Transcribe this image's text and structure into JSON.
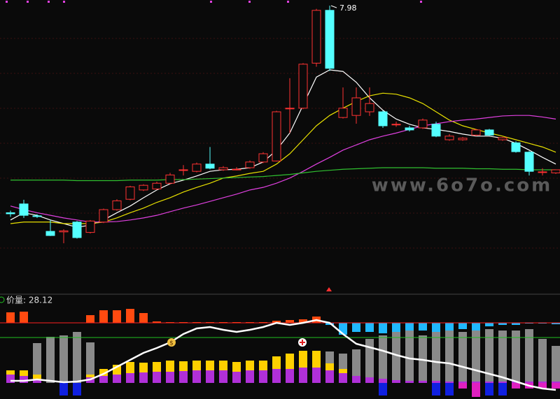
{
  "chart_data": [
    {
      "type": "candlestick",
      "peak_label": 7.98,
      "watermark": "www.6o7o.com",
      "ylim": [
        2.42,
        8.09
      ],
      "up_color": "#ff3232",
      "down_color": "#54ffff",
      "open": [
        3.98,
        4.15,
        3.92,
        3.62,
        3.61,
        3.8,
        3.6,
        3.8,
        4.04,
        4.24,
        4.42,
        4.44,
        4.55,
        4.81,
        4.78,
        4.92,
        4.81,
        4.82,
        4.85,
        4.96,
        4.98,
        6.0,
        6.0,
        6.87,
        7.89,
        5.82,
        5.86,
        5.93,
        5.93,
        5.69,
        5.62,
        5.62,
        5.69,
        5.39,
        5.39,
        5.48,
        5.58,
        5.39,
        5.33,
        5.15,
        4.77,
        4.75
      ],
      "high": [
        4.02,
        4.23,
        3.95,
        3.84,
        3.66,
        3.82,
        3.84,
        4.06,
        4.24,
        4.5,
        4.53,
        4.58,
        4.75,
        4.9,
        4.95,
        5.25,
        4.88,
        4.86,
        4.99,
        5.15,
        5.95,
        6.58,
        6.87,
        7.92,
        7.98,
        6.4,
        6.4,
        6.4,
        5.95,
        5.74,
        5.66,
        5.8,
        5.74,
        5.5,
        5.44,
        5.6,
        5.6,
        5.44,
        5.36,
        5.17,
        4.84,
        4.81
      ],
      "low": [
        3.9,
        3.88,
        3.88,
        3.53,
        3.39,
        3.48,
        3.58,
        3.78,
        4.02,
        4.22,
        4.4,
        4.42,
        4.53,
        4.7,
        4.76,
        4.82,
        4.79,
        4.8,
        4.83,
        4.94,
        4.97,
        5.52,
        5.98,
        6.8,
        6.72,
        5.8,
        5.7,
        5.85,
        5.62,
        5.64,
        5.55,
        5.6,
        5.44,
        5.37,
        5.37,
        5.46,
        5.47,
        5.37,
        5.14,
        4.7,
        4.7,
        4.73
      ],
      "close": [
        3.96,
        3.93,
        3.91,
        3.54,
        3.63,
        3.5,
        3.82,
        4.04,
        4.21,
        4.48,
        4.51,
        4.55,
        4.71,
        4.81,
        4.92,
        4.84,
        4.85,
        4.82,
        4.96,
        5.12,
        5.93,
        6.0,
        6.85,
        7.89,
        6.77,
        6.0,
        6.2,
        6.09,
        5.66,
        5.69,
        5.58,
        5.77,
        5.46,
        5.46,
        5.42,
        5.58,
        5.48,
        5.43,
        5.16,
        4.78,
        4.77,
        4.81
      ],
      "series": [
        {
          "color": "#ffffff",
          "values": [
            3.84,
            3.98,
            3.93,
            3.84,
            3.77,
            3.7,
            3.74,
            3.84,
            3.98,
            4.11,
            4.27,
            4.42,
            4.54,
            4.61,
            4.69,
            4.78,
            4.81,
            4.82,
            4.85,
            4.96,
            5.19,
            5.52,
            6.06,
            6.6,
            6.74,
            6.71,
            6.5,
            6.2,
            5.96,
            5.79,
            5.69,
            5.62,
            5.59,
            5.55,
            5.5,
            5.46,
            5.46,
            5.42,
            5.32,
            5.19,
            5.05,
            4.92
          ]
        },
        {
          "color": "#e8e000",
          "values": [
            3.77,
            3.8,
            3.8,
            3.8,
            3.77,
            3.77,
            3.77,
            3.8,
            3.88,
            3.98,
            4.07,
            4.18,
            4.27,
            4.38,
            4.47,
            4.55,
            4.65,
            4.69,
            4.74,
            4.78,
            4.92,
            5.12,
            5.39,
            5.66,
            5.86,
            6.0,
            6.13,
            6.24,
            6.29,
            6.27,
            6.2,
            6.09,
            5.93,
            5.77,
            5.66,
            5.59,
            5.52,
            5.46,
            5.39,
            5.32,
            5.25,
            5.15
          ]
        },
        {
          "color": "#e040e0",
          "values": [
            4.11,
            4.04,
            3.98,
            3.93,
            3.88,
            3.84,
            3.8,
            3.8,
            3.81,
            3.84,
            3.88,
            3.93,
            4.0,
            4.07,
            4.13,
            4.2,
            4.27,
            4.34,
            4.42,
            4.47,
            4.55,
            4.65,
            4.78,
            4.92,
            5.05,
            5.19,
            5.29,
            5.39,
            5.46,
            5.52,
            5.59,
            5.66,
            5.7,
            5.74,
            5.77,
            5.79,
            5.82,
            5.85,
            5.86,
            5.86,
            5.83,
            5.79
          ]
        },
        {
          "color": "#30c030",
          "values": [
            4.61,
            4.61,
            4.61,
            4.61,
            4.61,
            4.6,
            4.6,
            4.6,
            4.6,
            4.61,
            4.61,
            4.61,
            4.62,
            4.62,
            4.63,
            4.64,
            4.65,
            4.66,
            4.67,
            4.68,
            4.7,
            4.72,
            4.75,
            4.78,
            4.8,
            4.82,
            4.83,
            4.84,
            4.85,
            4.85,
            4.85,
            4.85,
            4.84,
            4.84,
            4.84,
            4.83,
            4.83,
            4.82,
            4.82,
            4.81,
            4.81,
            4.81
          ]
        }
      ]
    },
    {
      "type": "indicator",
      "label": "价量: 28.12",
      "ylim": [
        -23,
        108
      ],
      "hlines": [
        {
          "value": 86,
          "color": "#ff2020"
        },
        {
          "value": 65,
          "color": "#20c020"
        }
      ],
      "hang": {
        "up_color": "#ff4a10",
        "down_color": "#20b8ff",
        "values": [
          101,
          102,
          null,
          null,
          null,
          null,
          97,
          104,
          104,
          106,
          100,
          88,
          87,
          87,
          87,
          87,
          87,
          87,
          87,
          87,
          89,
          90,
          91,
          95,
          83,
          69,
          73,
          73,
          71,
          73,
          75,
          75,
          73,
          75,
          77,
          75,
          81,
          83,
          83,
          85,
          85,
          84
        ]
      },
      "gray": {
        "color": "#8a8a8a",
        "values": [
          null,
          null,
          57,
          66,
          68,
          73,
          58,
          null,
          null,
          null,
          null,
          null,
          null,
          null,
          null,
          null,
          null,
          null,
          null,
          null,
          null,
          null,
          null,
          null,
          45,
          42,
          48,
          63,
          68,
          73,
          78,
          68,
          77,
          75,
          73,
          77,
          77,
          75,
          75,
          77,
          63,
          53
        ]
      },
      "stack": [
        {
          "color": "#b030d8",
          "values": [
            12,
            10,
            6,
            0,
            0,
            0,
            8,
            10,
            12,
            14,
            15,
            16,
            16,
            17,
            18,
            18,
            18,
            16,
            18,
            18,
            20,
            20,
            22,
            22,
            18,
            14,
            10,
            8,
            6,
            4,
            3,
            3,
            3,
            2,
            2,
            2,
            2,
            2,
            2,
            2,
            2,
            2
          ]
        },
        {
          "color": "#ffd000",
          "values": [
            6,
            8,
            6,
            0,
            0,
            0,
            4,
            10,
            14,
            16,
            14,
            14,
            16,
            14,
            14,
            14,
            14,
            14,
            14,
            14,
            18,
            22,
            24,
            24,
            10,
            6,
            0,
            0,
            0,
            0,
            0,
            0,
            0,
            0,
            0,
            0,
            0,
            0,
            0,
            0,
            0,
            0
          ]
        }
      ],
      "neg": [
        {
          "color": "#1020e0",
          "values": [
            null,
            null,
            null,
            null,
            -18,
            -18,
            null,
            null,
            null,
            null,
            null,
            null,
            null,
            null,
            null,
            null,
            null,
            null,
            null,
            null,
            null,
            null,
            null,
            null,
            null,
            null,
            null,
            null,
            -18,
            null,
            null,
            null,
            -18,
            -18,
            null,
            null,
            -18,
            -18,
            null,
            null,
            null,
            null
          ]
        },
        {
          "color": "#e020c0",
          "values": [
            null,
            null,
            null,
            null,
            null,
            null,
            null,
            null,
            null,
            null,
            null,
            null,
            null,
            null,
            null,
            null,
            null,
            null,
            null,
            null,
            null,
            null,
            null,
            null,
            null,
            null,
            null,
            null,
            null,
            null,
            null,
            null,
            null,
            null,
            -8,
            -20,
            null,
            null,
            -8,
            -8,
            -8,
            -8
          ]
        }
      ],
      "line": {
        "color": "#ffffff",
        "values": [
          3,
          3,
          5,
          3,
          1,
          2,
          5,
          13,
          23,
          33,
          43,
          50,
          58,
          70,
          78,
          80,
          76,
          73,
          76,
          80,
          86,
          83,
          86,
          90,
          86,
          70,
          56,
          51,
          46,
          40,
          35,
          33,
          30,
          28,
          23,
          18,
          13,
          8,
          2,
          -4,
          -8,
          -10
        ]
      }
    }
  ]
}
